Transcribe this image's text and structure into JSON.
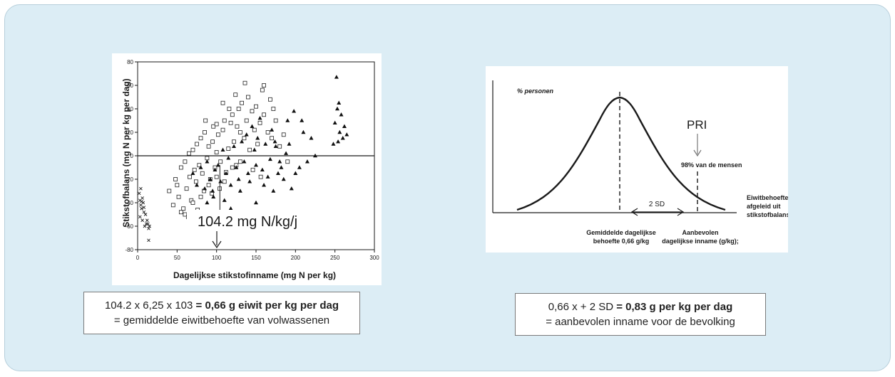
{
  "chart_data": [
    {
      "type": "scatter",
      "xlabel": "Dagelijkse stikstofinname (mg N per kg)",
      "ylabel": "Stikstofbalans (mg N per kg per dag)",
      "xlim": [
        0,
        300
      ],
      "ylim": [
        -80,
        80
      ],
      "x_ticks": [
        "0",
        "50",
        "100",
        "150",
        "200",
        "250",
        "300"
      ],
      "y_ticks": [
        "80",
        "60",
        "40",
        "20",
        "0",
        "-20",
        "-40",
        "-60",
        "-80"
      ],
      "reference_line_y": 0,
      "annotation": "104.2 mg N/kg/j",
      "annotation_x": 104.2,
      "series": [
        {
          "marker": "open-square",
          "points": [
            [
              40,
              -30
            ],
            [
              45,
              -42
            ],
            [
              48,
              -20
            ],
            [
              50,
              -25
            ],
            [
              52,
              -35
            ],
            [
              55,
              -10
            ],
            [
              58,
              -45
            ],
            [
              60,
              -5
            ],
            [
              62,
              -28
            ],
            [
              65,
              2
            ],
            [
              66,
              -18
            ],
            [
              68,
              -38
            ],
            [
              70,
              5
            ],
            [
              72,
              -12
            ],
            [
              74,
              -22
            ],
            [
              75,
              10
            ],
            [
              78,
              -8
            ],
            [
              80,
              15
            ],
            [
              82,
              -15
            ],
            [
              84,
              -30
            ],
            [
              85,
              20
            ],
            [
              88,
              -2
            ],
            [
              90,
              8
            ],
            [
              92,
              -20
            ],
            [
              95,
              12
            ],
            [
              96,
              25
            ],
            [
              98,
              -10
            ],
            [
              100,
              3
            ],
            [
              102,
              18
            ],
            [
              105,
              -5
            ],
            [
              108,
              22
            ],
            [
              110,
              30
            ],
            [
              112,
              -14
            ],
            [
              115,
              6
            ],
            [
              118,
              28
            ],
            [
              120,
              35
            ],
            [
              122,
              12
            ],
            [
              125,
              -8
            ],
            [
              128,
              40
            ],
            [
              130,
              20
            ],
            [
              132,
              45
            ],
            [
              135,
              15
            ],
            [
              138,
              30
            ],
            [
              140,
              50
            ],
            [
              142,
              5
            ],
            [
              145,
              38
            ],
            [
              148,
              22
            ],
            [
              150,
              42
            ],
            [
              152,
              10
            ],
            [
              155,
              28
            ],
            [
              158,
              56
            ],
            [
              160,
              35
            ],
            [
              165,
              20
            ],
            [
              168,
              48
            ],
            [
              170,
              15
            ],
            [
              175,
              30
            ],
            [
              180,
              8
            ],
            [
              185,
              18
            ],
            [
              190,
              -5
            ],
            [
              70,
              -40
            ],
            [
              60,
              -50
            ],
            [
              55,
              -48
            ],
            [
              80,
              -35
            ],
            [
              90,
              -25
            ],
            [
              100,
              -18
            ],
            [
              110,
              -22
            ],
            [
              120,
              -10
            ],
            [
              130,
              -5
            ],
            [
              86,
              30
            ],
            [
              94,
              -32
            ],
            [
              104,
              -28
            ],
            [
              116,
              40
            ],
            [
              124,
              52
            ],
            [
              136,
              62
            ],
            [
              146,
              -12
            ],
            [
              156,
              -18
            ],
            [
              100,
              27
            ],
            [
              76,
              -46
            ],
            [
              64,
              -52
            ],
            [
              108,
              45
            ],
            [
              126,
              25
            ],
            [
              160,
              60
            ],
            [
              172,
              40
            ]
          ]
        },
        {
          "marker": "filled-triangle",
          "points": [
            [
              70,
              -15
            ],
            [
              75,
              -25
            ],
            [
              80,
              -10
            ],
            [
              85,
              -28
            ],
            [
              88,
              -5
            ],
            [
              92,
              -20
            ],
            [
              95,
              -30
            ],
            [
              98,
              -12
            ],
            [
              102,
              -8
            ],
            [
              105,
              -22
            ],
            [
              108,
              5
            ],
            [
              112,
              -15
            ],
            [
              115,
              -2
            ],
            [
              118,
              -25
            ],
            [
              122,
              8
            ],
            [
              125,
              -10
            ],
            [
              128,
              -20
            ],
            [
              132,
              12
            ],
            [
              135,
              -5
            ],
            [
              138,
              18
            ],
            [
              140,
              -15
            ],
            [
              145,
              25
            ],
            [
              148,
              5
            ],
            [
              150,
              -8
            ],
            [
              152,
              15
            ],
            [
              155,
              32
            ],
            [
              158,
              -12
            ],
            [
              160,
              -25
            ],
            [
              162,
              10
            ],
            [
              165,
              -18
            ],
            [
              168,
              -3
            ],
            [
              170,
              22
            ],
            [
              172,
              -30
            ],
            [
              175,
              8
            ],
            [
              178,
              -15
            ],
            [
              180,
              -5
            ],
            [
              182,
              -10
            ],
            [
              185,
              -20
            ],
            [
              188,
              2
            ],
            [
              190,
              30
            ],
            [
              195,
              -28
            ],
            [
              198,
              38
            ],
            [
              200,
              -15
            ],
            [
              205,
              -10
            ],
            [
              210,
              20
            ],
            [
              215,
              -5
            ],
            [
              220,
              15
            ],
            [
              225,
              0
            ],
            [
              250,
              28
            ],
            [
              252,
              67
            ],
            [
              253,
              40
            ],
            [
              255,
              45
            ],
            [
              256,
              20
            ],
            [
              258,
              35
            ],
            [
              260,
              15
            ],
            [
              262,
              25
            ],
            [
              265,
              18
            ],
            [
              248,
              10
            ],
            [
              254,
              12
            ],
            [
              88,
              -40
            ],
            [
              96,
              -35
            ],
            [
              110,
              -38
            ],
            [
              130,
              -30
            ],
            [
              150,
              -40
            ],
            [
              142,
              -22
            ],
            [
              118,
              -45
            ],
            [
              208,
              30
            ],
            [
              192,
              10
            ],
            [
              174,
              12
            ]
          ]
        },
        {
          "marker": "x",
          "points": [
            [
              2,
              -32
            ],
            [
              3,
              -38
            ],
            [
              4,
              -42
            ],
            [
              5,
              -45
            ],
            [
              6,
              -36
            ],
            [
              7,
              -40
            ],
            [
              8,
              -48
            ],
            [
              3,
              -52
            ],
            [
              6,
              -55
            ],
            [
              9,
              -60
            ],
            [
              12,
              -55
            ],
            [
              13,
              -58
            ],
            [
              14,
              -62
            ],
            [
              15,
              -60
            ],
            [
              10,
              -50
            ],
            [
              4,
              -28
            ],
            [
              14,
              -72
            ],
            [
              8,
              -44
            ],
            [
              11,
              -58
            ],
            [
              5,
              -39
            ]
          ]
        }
      ]
    },
    {
      "type": "area",
      "ylabel": "% personen",
      "labels": {
        "pri": "PRI",
        "pri_note": "98% van de mensen",
        "sd": "2 SD",
        "mean_1": "Gemiddelde dagelijkse",
        "mean_2": "behoefte 0,66 g/kg",
        "rec_1": "Aanbevolen",
        "rec_2": "dagelijkse inname (g/kg);",
        "right_1": "Eiwitbehoefte",
        "right_2": "afgeleid uit",
        "right_3": "stikstofbalans"
      },
      "mean": 0.66,
      "recommended": 0.83
    }
  ],
  "left_box": {
    "line1_plain": "104.2 x 6,25 x 103 ",
    "line1_bold": "= 0,66 g eiwit per kg per dag",
    "line2": "= gemiddelde eiwitbehoefte van volwassenen"
  },
  "right_box": {
    "line1_plain": "0,66 x + 2 SD ",
    "line1_bold": "= 0,83 g per kg per dag",
    "line2": "= aanbevolen inname voor de bevolking"
  },
  "colors": {
    "panel": "#dcedf5",
    "ink": "#1a1a1a",
    "grid": "#bbbbbb"
  }
}
